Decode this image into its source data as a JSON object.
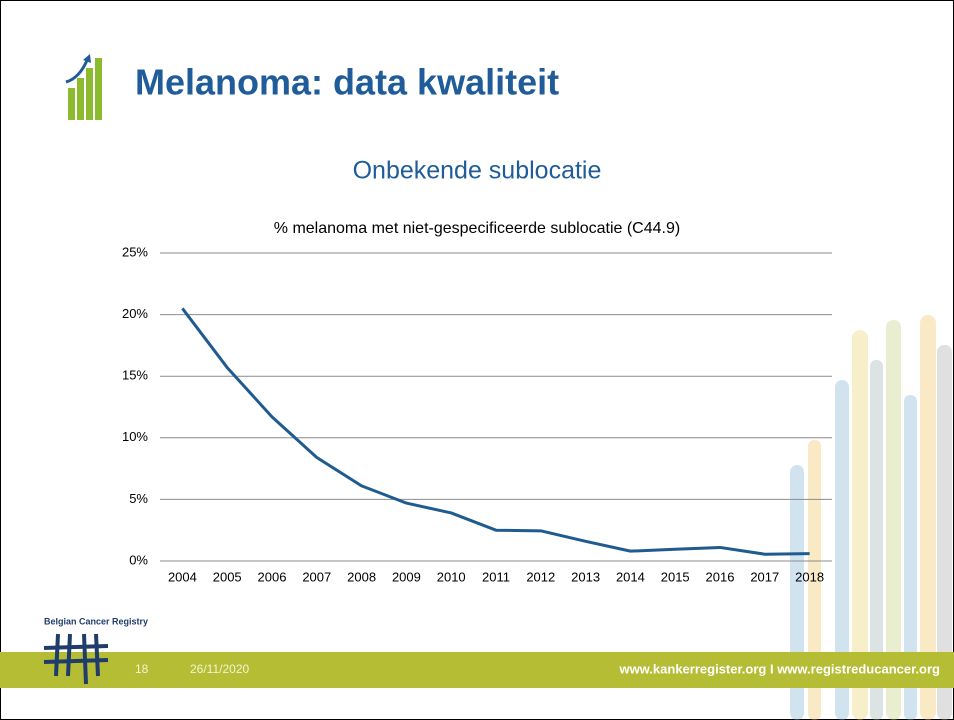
{
  "slide": {
    "title": "Melanoma: data kwaliteit",
    "heading": "Onbekende sublocatie",
    "logo_text": "Belgian Cancer Registry",
    "page_number": "18",
    "date": "26/11/2020",
    "footer_links": "www.kankerregister.org I www.registreducancer.org"
  },
  "chart_data": {
    "type": "line",
    "title": "% melanoma met niet-gespecificeerde sublocatie (C44.9)",
    "categories": [
      "2004",
      "2005",
      "2006",
      "2007",
      "2008",
      "2009",
      "2010",
      "2011",
      "2012",
      "2013",
      "2014",
      "2015",
      "2016",
      "2017",
      "2018"
    ],
    "values": [
      20.5,
      15.7,
      11.7,
      8.4,
      6.1,
      4.7,
      3.9,
      2.5,
      2.45,
      1.6,
      0.8,
      0.95,
      1.1,
      0.55,
      0.6
    ],
    "color": "#1f5b8f",
    "ylim": [
      0,
      25
    ],
    "yticks": [
      {
        "value": 0,
        "label": "0%"
      },
      {
        "value": 5,
        "label": "5%"
      },
      {
        "value": 10,
        "label": "10%"
      },
      {
        "value": 15,
        "label": "15%"
      },
      {
        "value": 20,
        "label": "20%"
      },
      {
        "value": 25,
        "label": "25%"
      }
    ],
    "grid": true
  }
}
